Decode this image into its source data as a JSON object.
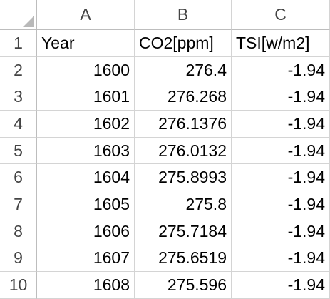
{
  "columns": [
    "A",
    "B",
    "C"
  ],
  "rows": [
    "1",
    "2",
    "3",
    "4",
    "5",
    "6",
    "7",
    "8",
    "9",
    "10"
  ],
  "headers": [
    "Year",
    "CO2[ppm]",
    "TSI[w/m2]"
  ],
  "data": [
    [
      "1600",
      "276.4",
      "-1.94"
    ],
    [
      "1601",
      "276.268",
      "-1.94"
    ],
    [
      "1602",
      "276.1376",
      "-1.94"
    ],
    [
      "1603",
      "276.0132",
      "-1.94"
    ],
    [
      "1604",
      "275.8993",
      "-1.94"
    ],
    [
      "1605",
      "275.8",
      "-1.94"
    ],
    [
      "1606",
      "275.7184",
      "-1.94"
    ],
    [
      "1607",
      "275.6519",
      "-1.94"
    ],
    [
      "1608",
      "275.596",
      "-1.94"
    ]
  ]
}
